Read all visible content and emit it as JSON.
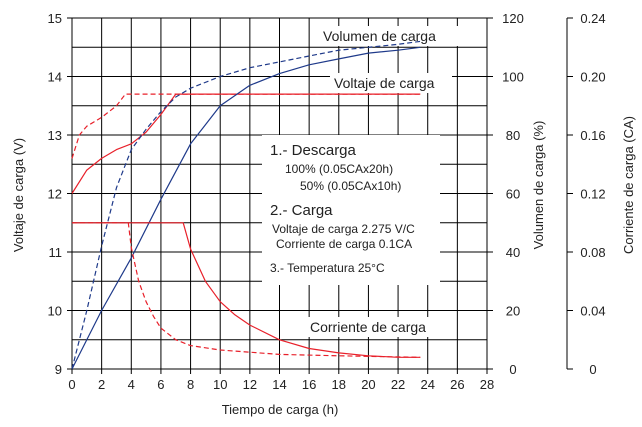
{
  "chart_data": {
    "type": "line",
    "xlabel": "Tiempo de carga (h)",
    "xlim": [
      0,
      28
    ],
    "x_ticks": [
      "0",
      "2",
      "4",
      "6",
      "8",
      "10",
      "12",
      "14",
      "16",
      "18",
      "20",
      "22",
      "24",
      "26",
      "28"
    ],
    "grid": true,
    "axes": {
      "left": {
        "label": "Voltaje de carga (V)",
        "range": [
          9,
          15
        ],
        "ticks": [
          "9",
          "10",
          "11",
          "12",
          "13",
          "14",
          "15"
        ]
      },
      "right1": {
        "label": "Volumen de carga (%)",
        "range": [
          0,
          120
        ],
        "ticks": [
          "0",
          "20",
          "40",
          "60",
          "80",
          "100",
          "120"
        ]
      },
      "right2": {
        "label": "Corriente de carga (CA)",
        "range": [
          0,
          0.24
        ],
        "ticks": [
          "0",
          "0.04",
          "0.08",
          "0.12",
          "0.16",
          "0.20",
          "0.24"
        ]
      }
    },
    "colors": {
      "voltage": "#e8202a",
      "volume": "#1f3a8a",
      "current": "#e8202a",
      "grid": "#000000"
    },
    "series": [
      {
        "axis": "left",
        "color": "#e8202a",
        "style": "solid",
        "x": [
          0,
          1,
          2,
          3,
          4,
          5,
          6,
          7,
          8,
          23.5
        ],
        "y": [
          12.0,
          12.4,
          12.6,
          12.75,
          12.85,
          13.05,
          13.35,
          13.7,
          13.7,
          13.7
        ]
      },
      {
        "axis": "left",
        "color": "#e8202a",
        "style": "dashed",
        "x": [
          0,
          0.5,
          1,
          2,
          3,
          3.6,
          4,
          23.5
        ],
        "y": [
          12.6,
          13.0,
          13.15,
          13.3,
          13.5,
          13.7,
          13.7,
          13.7
        ]
      },
      {
        "axis": "right1",
        "color": "#1f3a8a",
        "style": "solid",
        "x": [
          0,
          2,
          4,
          6,
          8,
          10,
          12,
          14,
          16,
          18,
          20,
          22,
          23.5
        ],
        "y": [
          0,
          20,
          38,
          58,
          77,
          90,
          97,
          101,
          104,
          106,
          108,
          109,
          110
        ]
      },
      {
        "axis": "right1",
        "color": "#1f3a8a",
        "style": "dashed",
        "x": [
          0,
          1,
          2,
          3,
          4,
          5,
          6,
          7,
          8,
          10,
          12,
          14,
          16,
          18,
          20,
          22,
          23.5
        ],
        "y": [
          0,
          20,
          42,
          62,
          75,
          82,
          88,
          93,
          96,
          100,
          103,
          105,
          107,
          109,
          110,
          111,
          112
        ]
      },
      {
        "axis": "right2",
        "color": "#e8202a",
        "style": "solid",
        "x": [
          0,
          7.5,
          8,
          9,
          10,
          11,
          12,
          14,
          16,
          18,
          20,
          22,
          23.5
        ],
        "y": [
          0.1,
          0.1,
          0.082,
          0.06,
          0.046,
          0.037,
          0.03,
          0.02,
          0.014,
          0.011,
          0.009,
          0.008,
          0.008
        ]
      },
      {
        "axis": "right2",
        "color": "#e8202a",
        "style": "dashed",
        "x": [
          0,
          3.8,
          4,
          4.5,
          5,
          5.5,
          6,
          7,
          8,
          10,
          14,
          18,
          23.5
        ],
        "y": [
          0.1,
          0.1,
          0.083,
          0.06,
          0.046,
          0.036,
          0.028,
          0.02,
          0.016,
          0.013,
          0.01,
          0.009,
          0.008
        ]
      }
    ],
    "curve_labels": {
      "volumen": "Volumen de carga",
      "voltaje": "Voltaje de carga",
      "corriente": "Corriente de carga"
    },
    "annotations": {
      "descarga_title": "1.- Descarga",
      "descarga_1": "100% (0.05CAx20h)",
      "descarga_2": "50% (0.05CAx10h)",
      "carga_title": "2.- Carga",
      "carga_1": "Voltaje de carga 2.275 V/C",
      "carga_2": "Corriente de carga 0.1CA",
      "temperatura": "3.- Temperatura 25°C"
    }
  }
}
